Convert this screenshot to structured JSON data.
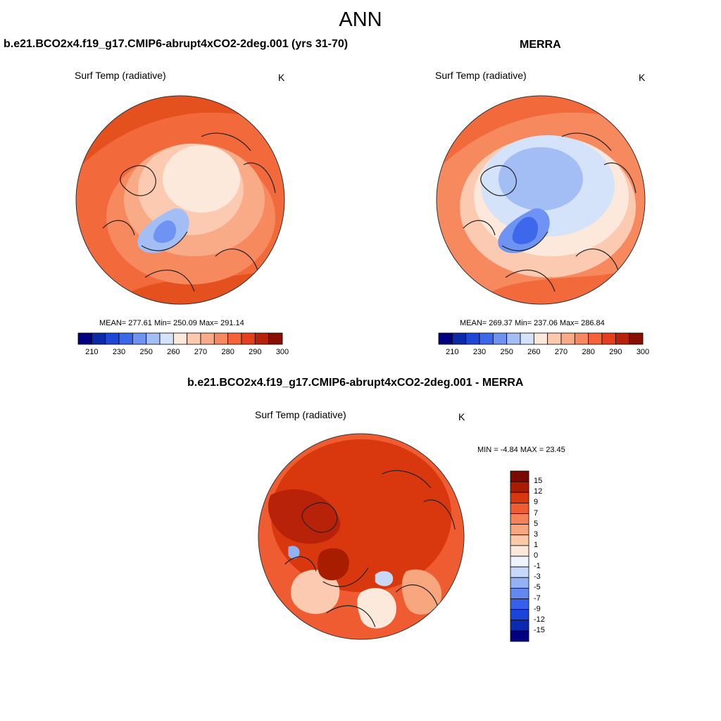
{
  "figure": {
    "title": "ANN"
  },
  "panels": [
    {
      "title": "b.e21.BCO2x4.f19_g17.CMIP6-abrupt4xCO2-2deg.001 (yrs 31-70)",
      "variable": "Surf Temp (radiative)",
      "units": "K",
      "stats": "MEAN= 277.61  Min= 250.09  Max= 291.14"
    },
    {
      "title": "MERRA",
      "variable": "Surf Temp (radiative)",
      "units": "K",
      "stats": "MEAN= 269.37  Min= 237.06  Max= 286.84"
    },
    {
      "title": "b.e21.BCO2x4.f19_g17.CMIP6-abrupt4xCO2-2deg.001 - MERRA",
      "variable": "Surf Temp (radiative)",
      "units": "K",
      "stats": "MIN =  -4.84 MAX =  23.45"
    }
  ],
  "colorbar_abs": {
    "colors": [
      "#000080",
      "#0b2aa8",
      "#1f47d6",
      "#3d68eb",
      "#6f93f2",
      "#a3bdf5",
      "#d4e3fa",
      "#fde8dc",
      "#fbcab0",
      "#f8ab86",
      "#f6895e",
      "#f4633a",
      "#e5401d",
      "#b82208",
      "#8a0e00"
    ],
    "tick_labels": [
      "210",
      "230",
      "250",
      "260",
      "270",
      "280",
      "290",
      "300"
    ]
  },
  "colorbar_diff": {
    "colors": [
      "#000080",
      "#0a2bb0",
      "#1a45d8",
      "#3560ec",
      "#6289f0",
      "#93b2f4",
      "#c7d9f8",
      "#eef3fc",
      "#fde8dc",
      "#fbc8a8",
      "#f8a67e",
      "#f6825a",
      "#f05c32",
      "#d9380f",
      "#a81c00",
      "#7a0a00"
    ],
    "tick_labels": [
      "15",
      "12",
      "9",
      "7",
      "5",
      "3",
      "1",
      "0",
      "-1",
      "-3",
      "-5",
      "-7",
      "-9",
      "-12",
      "-15"
    ]
  },
  "colors": {
    "land_outline": "#222222",
    "warm": "#f26a3c",
    "very_warm": "#e24a1b",
    "cold": "#7aa0ee",
    "very_cold": "#3f67d8"
  }
}
